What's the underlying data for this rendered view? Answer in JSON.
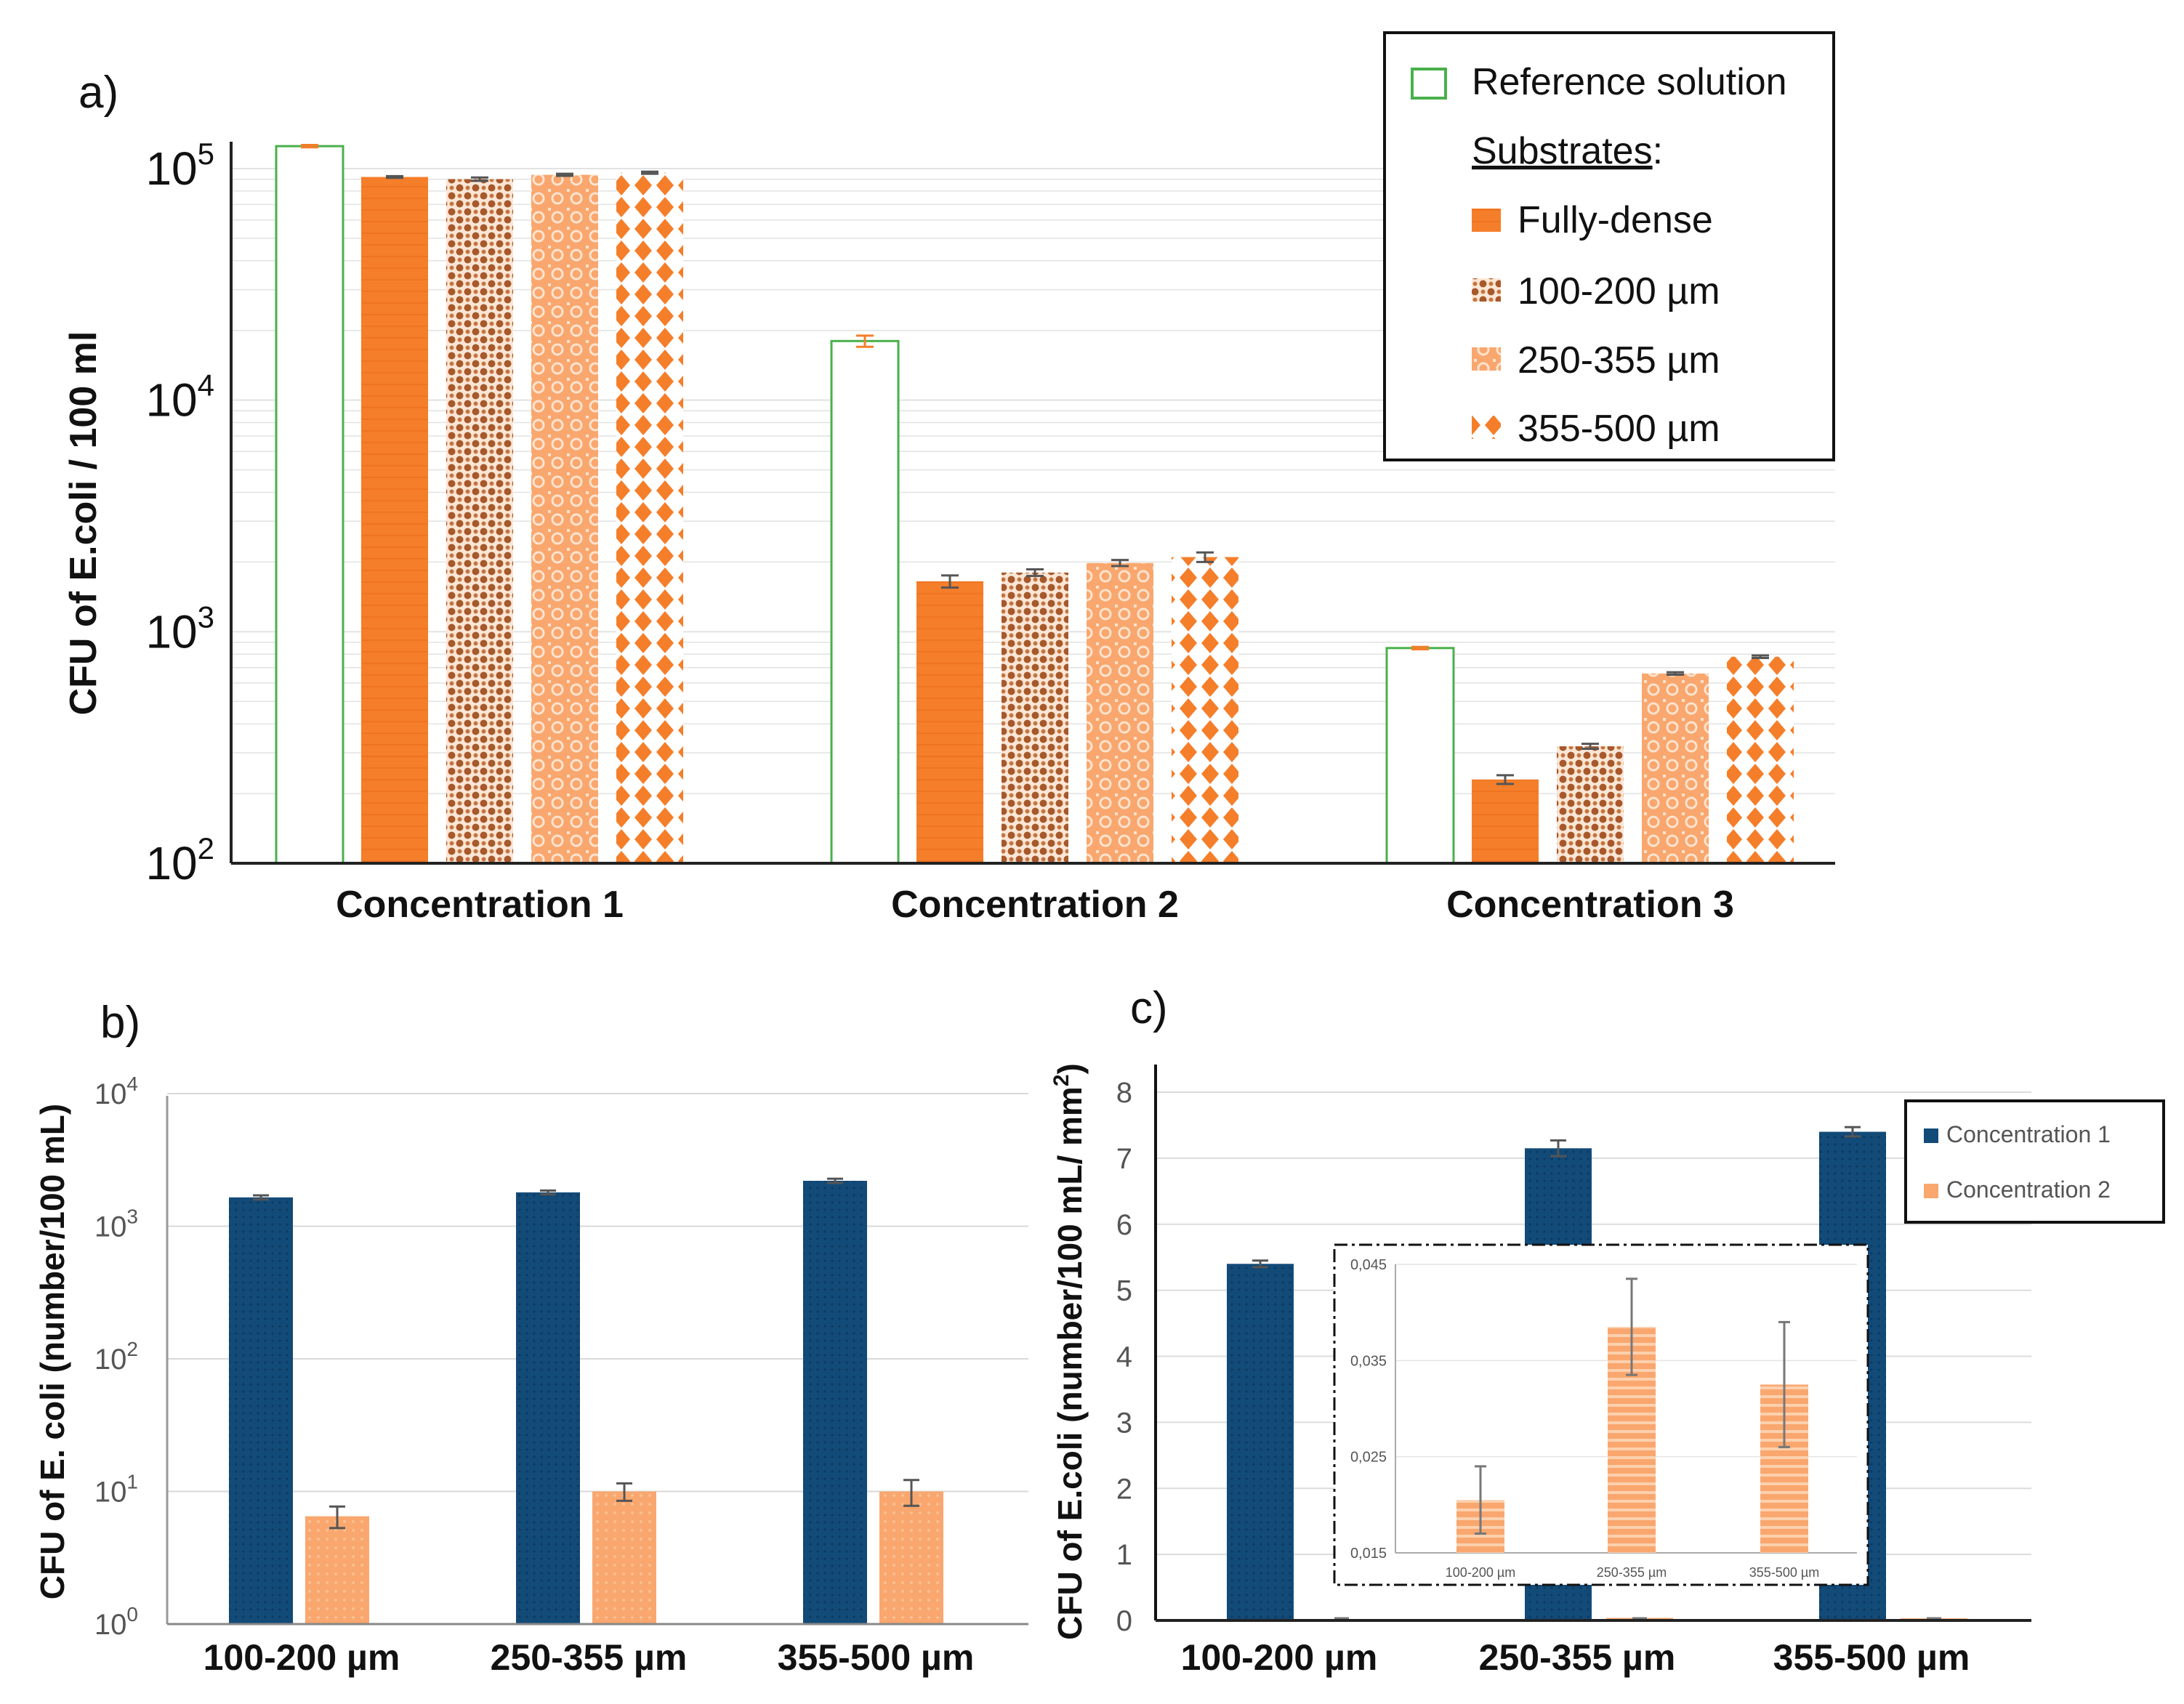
{
  "chart_data": [
    {
      "panel": "a)",
      "type": "bar",
      "scale": "log",
      "ylabel": "CFU of E.coli / 100 ml",
      "ylim": [
        100,
        130000
      ],
      "ticks": [
        {
          "value": 100,
          "base": "10",
          "exp": "2"
        },
        {
          "value": 1000,
          "base": "10",
          "exp": "3"
        },
        {
          "value": 10000,
          "base": "10",
          "exp": "4"
        },
        {
          "value": 100000,
          "base": "10",
          "exp": "5"
        }
      ],
      "categories": [
        "Concentration 1",
        "Concentration 2",
        "Concentration 3"
      ],
      "series": [
        {
          "name": "Reference solution",
          "values": [
            125000,
            18000,
            850
          ],
          "errors": [
            1500,
            1000,
            10
          ]
        },
        {
          "name": "Fully-dense",
          "values": [
            92000,
            1650,
            230
          ],
          "errors": [
            800,
            100,
            10
          ]
        },
        {
          "name": "100-200 µm",
          "values": [
            90000,
            1800,
            320
          ],
          "errors": [
            1500,
            60,
            8
          ]
        },
        {
          "name": "250-355 µm",
          "values": [
            94000,
            1980,
            660
          ],
          "errors": [
            1000,
            60,
            8
          ]
        },
        {
          "name": "355-500 µm",
          "values": [
            96000,
            2100,
            780
          ],
          "errors": [
            1000,
            100,
            10
          ]
        }
      ],
      "legend": {
        "reference_label": "Reference solution",
        "substrates_heading": "Substrates",
        "substrates_colon": ":",
        "position": "top-right"
      }
    },
    {
      "panel": "b)",
      "type": "bar",
      "scale": "log",
      "ylabel": "CFU of E. coli (number/100 mL)",
      "ylim": [
        1,
        10000
      ],
      "ticks": [
        {
          "value": 1,
          "base": "10",
          "exp": "0"
        },
        {
          "value": 10,
          "base": "10",
          "exp": "1"
        },
        {
          "value": 100,
          "base": "10",
          "exp": "2"
        },
        {
          "value": 1000,
          "base": "10",
          "exp": "3"
        },
        {
          "value": 10000,
          "base": "10",
          "exp": "4"
        }
      ],
      "categories": [
        "100-200 µm",
        "250-355 µm",
        "355-500 µm"
      ],
      "series": [
        {
          "name": "Concentration 1",
          "values": [
            1650,
            1800,
            2200
          ],
          "errors": [
            60,
            60,
            80
          ]
        },
        {
          "name": "Concentration 2",
          "values": [
            6.5,
            10,
            10
          ],
          "errors": [
            1.2,
            1.5,
            2.2
          ]
        }
      ]
    },
    {
      "panel": "c)",
      "type": "bar",
      "ylabel_main": "CFU of E.coli (number/100 mL/ mm",
      "ylabel_sup": "2",
      "ylabel_end": ")",
      "ylim": [
        0,
        8
      ],
      "ticks": [
        "0",
        "1",
        "2",
        "3",
        "4",
        "5",
        "6",
        "7",
        "8"
      ],
      "categories": [
        "100-200 µm",
        "250-355 µm",
        "355-500 µm"
      ],
      "series": [
        {
          "name": "Concentration 1",
          "values": [
            5.4,
            7.15,
            7.4
          ],
          "errors": [
            0.05,
            0.12,
            0.07
          ]
        },
        {
          "name": "Concentration 2",
          "values": [
            0.021,
            0.038,
            0.032
          ],
          "errors": [
            0.003,
            0.005,
            0.006
          ]
        }
      ],
      "legend": {
        "position": "top-right"
      },
      "inset": {
        "ylim": [
          0.015,
          0.045
        ],
        "ticks": [
          "0,015",
          "0,025",
          "0,035",
          "0,045"
        ],
        "categories": [
          "100-200 µm",
          "250-355 µm",
          "355-500 µm"
        ],
        "values": [
          0.0205,
          0.0385,
          0.0325
        ],
        "errors": [
          0.0035,
          0.005,
          0.0065
        ]
      }
    }
  ],
  "colors": {
    "orange": "#f57e2a",
    "orange_light": "#f9a76e",
    "brown": "#a8582a",
    "navy": "#124a78",
    "green": "#49b04b",
    "grid": "#e2e2e2"
  }
}
